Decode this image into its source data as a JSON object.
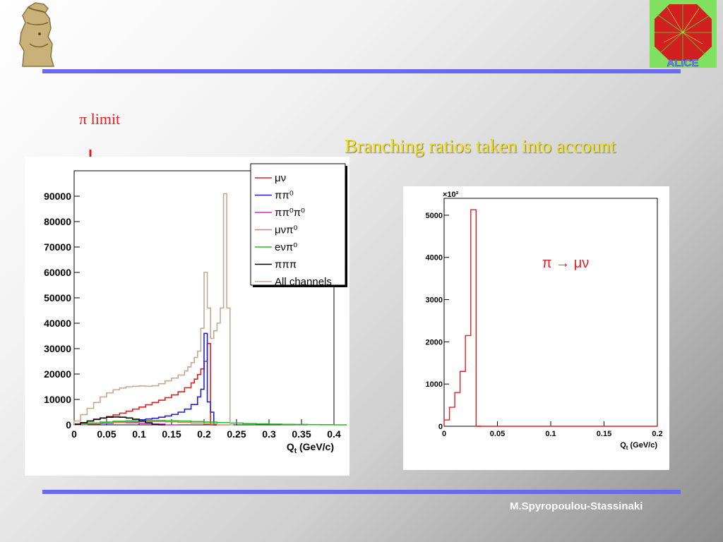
{
  "slide": {
    "pi_limit": "π limit",
    "branching_title": "Branching ratios taken into account",
    "author": "M.Spyropoulou-Stassinaki",
    "colors": {
      "rule": "#6a6af0",
      "title": "#f0e010",
      "pi_limit": "#e02020"
    },
    "logos": {
      "left": "athena-helmet-logo",
      "right": "alice-logo",
      "right_text": "ALICE"
    }
  },
  "chart_data": [
    {
      "type": "histogram",
      "xlabel": "Q_t (GeV/c)",
      "xlim": [
        0,
        0.4
      ],
      "ylim": [
        0,
        100000
      ],
      "xticks": [
        0,
        0.05,
        0.1,
        0.15,
        0.2,
        0.25,
        0.3,
        0.35,
        0.4
      ],
      "xtick_labels": [
        "0",
        "0.05",
        "0.1",
        "0.15",
        "0.2",
        "0.25",
        "0.3",
        "0.35",
        "0.4"
      ],
      "yticks": [
        0,
        10000,
        20000,
        30000,
        40000,
        50000,
        60000,
        70000,
        80000,
        90000
      ],
      "ytick_labels": [
        "0",
        "10000",
        "20000",
        "30000",
        "40000",
        "50000",
        "60000",
        "70000",
        "80000",
        "90000"
      ],
      "legend_position": "top-right",
      "series": [
        {
          "name": "μν",
          "color": "#e02020",
          "x": [
            0,
            0.01,
            0.02,
            0.03,
            0.04,
            0.05,
            0.06,
            0.07,
            0.08,
            0.09,
            0.1,
            0.11,
            0.12,
            0.13,
            0.14,
            0.15,
            0.16,
            0.17,
            0.18,
            0.185,
            0.19,
            0.195,
            0.2,
            0.205,
            0.21,
            0.215
          ],
          "y": [
            400,
            900,
            1500,
            2100,
            2700,
            3300,
            3900,
            4600,
            5400,
            6200,
            7000,
            7900,
            8800,
            9700,
            10700,
            11800,
            13000,
            14600,
            16500,
            18000,
            19800,
            22000,
            25000,
            32000,
            0,
            0
          ]
        },
        {
          "name": "ππ⁰",
          "color": "#2020d0",
          "x": [
            0,
            0.02,
            0.04,
            0.06,
            0.08,
            0.1,
            0.11,
            0.12,
            0.13,
            0.14,
            0.15,
            0.16,
            0.17,
            0.18,
            0.19,
            0.195,
            0.2,
            0.205,
            0.21,
            0.215
          ],
          "y": [
            100,
            300,
            600,
            1000,
            1500,
            2000,
            2300,
            2600,
            3000,
            3500,
            4100,
            5000,
            6200,
            8000,
            11000,
            14000,
            36000,
            9000,
            5000,
            0
          ]
        },
        {
          "name": "ππ⁰π⁰",
          "color": "#e020e0",
          "x": [
            0,
            0.02,
            0.04,
            0.06,
            0.08,
            0.1,
            0.12,
            0.14
          ],
          "y": [
            100,
            400,
            700,
            900,
            800,
            600,
            300,
            0
          ]
        },
        {
          "name": "μνπ⁰",
          "color": "#e08060",
          "x": [
            0,
            0.02,
            0.04,
            0.06,
            0.08,
            0.1,
            0.12,
            0.14,
            0.16,
            0.18,
            0.2,
            0.22
          ],
          "y": [
            200,
            500,
            800,
            1000,
            1200,
            1300,
            1300,
            1200,
            1000,
            700,
            400,
            0
          ]
        },
        {
          "name": "eνπ⁰",
          "color": "#20c020",
          "x": [
            0,
            0.02,
            0.04,
            0.06,
            0.08,
            0.1,
            0.12,
            0.14,
            0.16,
            0.18,
            0.2,
            0.22,
            0.24,
            0.26,
            0.28,
            0.3,
            0.32,
            0.34,
            0.36,
            0.38,
            0.4
          ],
          "y": [
            300,
            700,
            1100,
            1400,
            1600,
            1700,
            1700,
            1600,
            1500,
            1300,
            1100,
            900,
            700,
            500,
            400,
            300,
            200,
            150,
            100,
            50,
            0
          ]
        },
        {
          "name": "πππ",
          "color": "#000000",
          "x": [
            0,
            0.01,
            0.02,
            0.03,
            0.04,
            0.05,
            0.06,
            0.07,
            0.08,
            0.09,
            0.1,
            0.11,
            0.12,
            0.13
          ],
          "y": [
            200,
            800,
            1500,
            2200,
            2700,
            3000,
            3100,
            3000,
            2700,
            2200,
            1500,
            800,
            200,
            0
          ]
        },
        {
          "name": "All channels",
          "color": "#c8a890",
          "x": [
            0,
            0.01,
            0.02,
            0.03,
            0.04,
            0.05,
            0.06,
            0.07,
            0.08,
            0.09,
            0.1,
            0.11,
            0.12,
            0.13,
            0.14,
            0.15,
            0.16,
            0.17,
            0.175,
            0.18,
            0.185,
            0.19,
            0.195,
            0.2,
            0.205,
            0.21,
            0.215,
            0.22,
            0.225,
            0.23,
            0.235,
            0.24
          ],
          "y": [
            1500,
            4000,
            6500,
            8800,
            11000,
            12600,
            13800,
            14500,
            15000,
            15200,
            15300,
            15200,
            15400,
            16200,
            17300,
            18400,
            19600,
            21200,
            22800,
            24500,
            26500,
            29000,
            38000,
            60000,
            46000,
            34000,
            37000,
            40000,
            46000,
            91000,
            46000,
            0
          ]
        }
      ]
    },
    {
      "type": "histogram",
      "xlabel": "Q_t (GeV/c)",
      "xlim": [
        0,
        0.2
      ],
      "ylim": [
        0,
        5400
      ],
      "scale_label": "×10²",
      "annotation": "π → μν",
      "xticks": [
        0,
        0.05,
        0.1,
        0.15,
        0.2
      ],
      "xtick_labels": [
        "0",
        "0.05",
        "0.1",
        "0.15",
        "0.2"
      ],
      "yticks": [
        0,
        1000,
        2000,
        3000,
        4000,
        5000
      ],
      "ytick_labels": [
        "0",
        "1000",
        "2000",
        "3000",
        "4000",
        "5000"
      ],
      "series": [
        {
          "color": "#e02020",
          "x": [
            0,
            0.005,
            0.01,
            0.015,
            0.02,
            0.025,
            0.03
          ],
          "y": [
            150,
            450,
            800,
            1300,
            2150,
            5130,
            0
          ]
        }
      ]
    }
  ]
}
